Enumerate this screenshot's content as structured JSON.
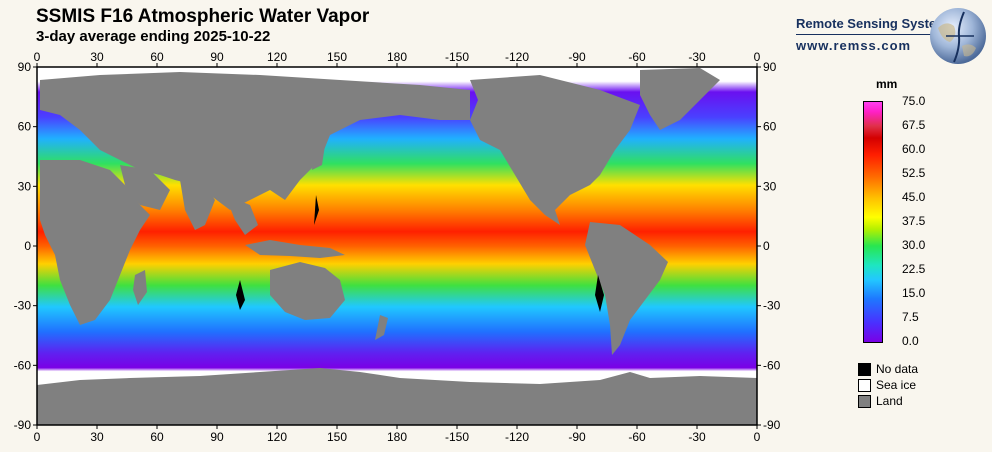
{
  "header": {
    "title": "SSMIS F16 Atmospheric Water Vapor",
    "subtitle": "3-day average ending 2025-10-22"
  },
  "brand": {
    "name": "Remote Sensing Systems",
    "url": "www.remss.com"
  },
  "map": {
    "x_ticks": [
      "0",
      "30",
      "60",
      "90",
      "120",
      "150",
      "180",
      "-150",
      "-120",
      "-90",
      "-60",
      "-30",
      "0"
    ],
    "y_ticks": [
      "90",
      "60",
      "30",
      "0",
      "-30",
      "-60",
      "-90"
    ],
    "colors": {
      "land": "#808080",
      "sea_ice": "#ffffff",
      "no_data": "#000000"
    }
  },
  "colorbar": {
    "unit": "mm",
    "labels": [
      "75.0",
      "67.5",
      "60.0",
      "52.5",
      "45.0",
      "37.5",
      "30.0",
      "22.5",
      "15.0",
      "7.5",
      "0.0"
    ]
  },
  "legend": {
    "items": [
      {
        "label": "No data",
        "color": "#000000"
      },
      {
        "label": "Sea ice",
        "color": "#ffffff"
      },
      {
        "label": "Land",
        "color": "#808080"
      }
    ]
  }
}
